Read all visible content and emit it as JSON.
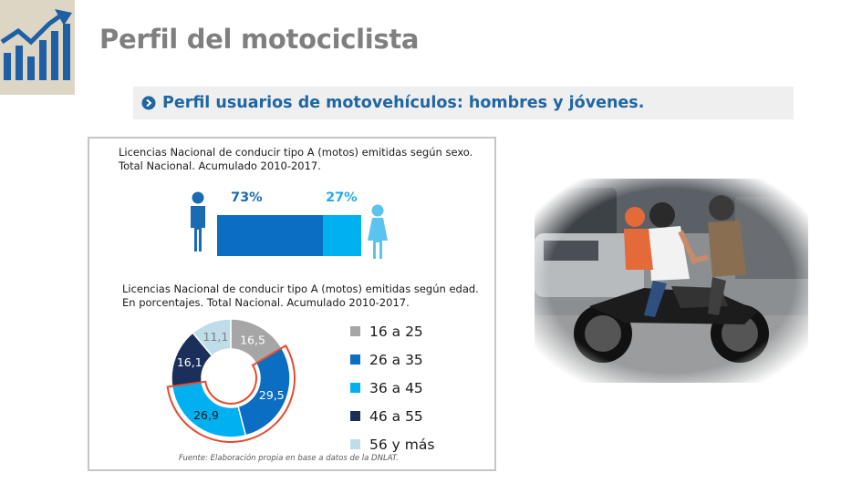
{
  "slide": {
    "title": "Perfil del motociclista",
    "subtitle": "Perfil usuarios de motovehículos: hombres y jóvenes."
  },
  "panel": {
    "caption_sex": "Licencias Nacional de conducir tipo A (motos) emitidas según sexo. Total Nacional. Acumulado 2010-2017.",
    "caption_age": "Licencias Nacional de conducir tipo A (motos) emitidas según edad. En porcentajes. Total Nacional. Acumulado 2010-2017.",
    "source": "Fuente: Elaboración propia en base a datos de la DNLAT."
  },
  "chart_data": [
    {
      "type": "bar",
      "categories": [
        "Hombres",
        "Mujeres"
      ],
      "values": [
        73,
        27
      ],
      "labels": [
        "73%",
        "27%"
      ],
      "colors": [
        "#0b6ec2",
        "#00b0f0"
      ],
      "stacked": true,
      "title": "Licencias Nacional de conducir tipo A (motos) emitidas según sexo. Total Nacional. Acumulado 2010-2017."
    },
    {
      "type": "pie",
      "donut": true,
      "categories": [
        "16 a 25",
        "26 a 35",
        "36 a 45",
        "46 a 55",
        "56 y más"
      ],
      "values": [
        16.5,
        29.5,
        26.9,
        16.1,
        11.1
      ],
      "labels": [
        "16,5",
        "29,5",
        "26,9",
        "16,1",
        "11,1"
      ],
      "colors": [
        "#a6a6a6",
        "#0b6ec2",
        "#00b0f0",
        "#1a2f5a",
        "#bfdde9"
      ],
      "label_colors": [
        "#ffffff",
        "#ffffff",
        "#1a1a1a",
        "#ffffff",
        "#7f7f7f"
      ],
      "legend_position": "right",
      "highlight": "26 a 35, 36 a 45",
      "title": "Licencias Nacional de conducir tipo A (motos) emitidas según edad. En porcentajes. Total Nacional. Acumulado 2010-2017."
    }
  ],
  "colors": {
    "title": "#7f7f7f",
    "subtitle": "#1f66a3",
    "logo_bg": "#ddd6c4",
    "logo_fg": "#1f5fa6",
    "highlight_ring": "#e8492f"
  },
  "icons": [
    "growth-chart-logo-icon",
    "circle-chevron-right-icon",
    "male-person-icon",
    "female-person-icon"
  ],
  "photo": "two-men-on-motorcycle-photo"
}
